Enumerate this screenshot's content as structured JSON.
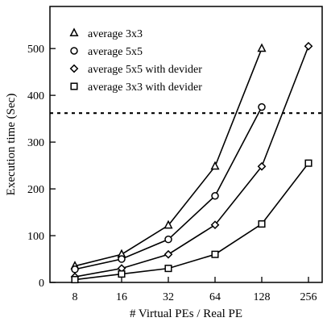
{
  "chart_data": {
    "type": "line",
    "title": "",
    "xlabel": "# Virtual PEs / Real PE",
    "ylabel": "Execution time (Sec)",
    "x_scale": "log2",
    "categories": [
      "8",
      "16",
      "32",
      "64",
      "128",
      "256"
    ],
    "x": [
      8,
      16,
      32,
      64,
      128,
      256
    ],
    "ylim": [
      0,
      590
    ],
    "yticks": [
      0,
      100,
      200,
      300,
      400,
      500
    ],
    "grid": false,
    "legend_position": "top-left",
    "reference_line": {
      "y": 362,
      "style": "dotted"
    },
    "series": [
      {
        "name": "average 3x3",
        "marker": "triangle",
        "x": [
          8,
          16,
          32,
          64,
          128
        ],
        "values": [
          35,
          60,
          122,
          248,
          500
        ]
      },
      {
        "name": "average 5x5",
        "marker": "circle",
        "x": [
          8,
          16,
          32,
          64,
          128
        ],
        "values": [
          28,
          50,
          92,
          185,
          375
        ]
      },
      {
        "name": "average 5x5 with devider",
        "marker": "diamond",
        "x": [
          8,
          16,
          32,
          64,
          128,
          256
        ],
        "values": [
          12,
          30,
          60,
          123,
          248,
          505
        ]
      },
      {
        "name": "average 3x3 with devider",
        "marker": "square",
        "x": [
          8,
          16,
          32,
          64,
          128,
          256
        ],
        "values": [
          6,
          18,
          30,
          60,
          125,
          255
        ]
      }
    ]
  }
}
